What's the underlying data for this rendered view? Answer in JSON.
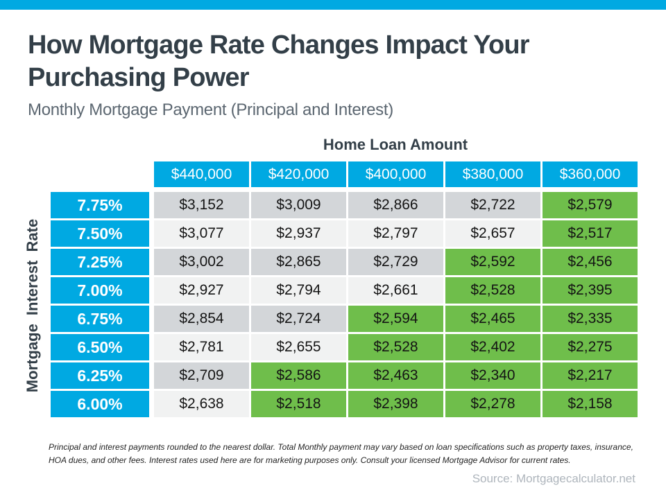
{
  "page": {
    "title_line1": "How Mortgage Rate Changes Impact Your",
    "title_line2": "Purchasing Power",
    "subtitle": "Monthly Mortgage Payment (Principal and Interest)",
    "footnote": "Principal and interest payments rounded to the nearest dollar. Total Monthly payment may vary based on loan specifications such as property taxes, insurance, HOA dues, and other fees. Interest rates used here are for marketing purposes only. Consult your licensed Mortgage Advisor for current rates.",
    "source": "Source: Mortgagecalculator.net"
  },
  "table": {
    "column_group_label": "Home Loan Amount",
    "row_group_label": "Mortgage Interest Rate",
    "columns": [
      "$440,000",
      "$420,000",
      "$400,000",
      "$380,000",
      "$360,000"
    ],
    "rows": [
      {
        "rate": "7.75%",
        "values": [
          "$3,152",
          "$3,009",
          "$2,866",
          "$2,722",
          "$2,579"
        ]
      },
      {
        "rate": "7.50%",
        "values": [
          "$3,077",
          "$2,937",
          "$2,797",
          "$2,657",
          "$2,517"
        ]
      },
      {
        "rate": "7.25%",
        "values": [
          "$3,002",
          "$2,865",
          "$2,729",
          "$2,592",
          "$2,456"
        ]
      },
      {
        "rate": "7.00%",
        "values": [
          "$2,927",
          "$2,794",
          "$2,661",
          "$2,528",
          "$2,395"
        ]
      },
      {
        "rate": "6.75%",
        "values": [
          "$2,854",
          "$2,724",
          "$2,594",
          "$2,465",
          "$2,335"
        ]
      },
      {
        "rate": "6.50%",
        "values": [
          "$2,781",
          "$2,655",
          "$2,528",
          "$2,402",
          "$2,275"
        ]
      },
      {
        "rate": "6.25%",
        "values": [
          "$2,709",
          "$2,586",
          "$2,463",
          "$2,340",
          "$2,217"
        ]
      },
      {
        "rate": "6.00%",
        "values": [
          "$2,638",
          "$2,518",
          "$2,398",
          "$2,278",
          "$2,158"
        ]
      }
    ],
    "green_cells": [
      [
        0,
        0,
        0,
        0,
        1
      ],
      [
        0,
        0,
        0,
        0,
        1
      ],
      [
        0,
        0,
        0,
        1,
        1
      ],
      [
        0,
        0,
        0,
        1,
        1
      ],
      [
        0,
        0,
        1,
        1,
        1
      ],
      [
        0,
        0,
        1,
        1,
        1
      ],
      [
        0,
        1,
        1,
        1,
        1
      ],
      [
        0,
        1,
        1,
        1,
        1
      ]
    ]
  },
  "colors": {
    "accent_blue": "#00A9E2",
    "highlight_green": "#6FBE4B",
    "stripe_gray": "#D3D6D9",
    "stripe_light": "#F1F2F2",
    "title_dark": "#333F48"
  },
  "chart_data": {
    "type": "table",
    "title": "How Mortgage Rate Changes Impact Your Purchasing Power",
    "subtitle": "Monthly Mortgage Payment (Principal and Interest)",
    "column_axis_label": "Home Loan Amount",
    "row_axis_label": "Mortgage Interest Rate",
    "columns": [
      440000,
      420000,
      400000,
      380000,
      360000
    ],
    "rows_percent": [
      7.75,
      7.5,
      7.25,
      7.0,
      6.75,
      6.5,
      6.25,
      6.0
    ],
    "values": [
      [
        3152,
        3009,
        2866,
        2722,
        2579
      ],
      [
        3077,
        2937,
        2797,
        2657,
        2517
      ],
      [
        3002,
        2865,
        2729,
        2592,
        2456
      ],
      [
        2927,
        2794,
        2661,
        2528,
        2395
      ],
      [
        2854,
        2724,
        2594,
        2465,
        2335
      ],
      [
        2781,
        2655,
        2528,
        2402,
        2275
      ],
      [
        2709,
        2586,
        2463,
        2340,
        2217
      ],
      [
        2638,
        2518,
        2398,
        2278,
        2158
      ]
    ],
    "green_highlight_matrix": [
      [
        0,
        0,
        0,
        0,
        1
      ],
      [
        0,
        0,
        0,
        0,
        1
      ],
      [
        0,
        0,
        0,
        1,
        1
      ],
      [
        0,
        0,
        0,
        1,
        1
      ],
      [
        0,
        0,
        1,
        1,
        1
      ],
      [
        0,
        0,
        1,
        1,
        1
      ],
      [
        0,
        1,
        1,
        1,
        1
      ],
      [
        0,
        1,
        1,
        1,
        1
      ]
    ]
  }
}
